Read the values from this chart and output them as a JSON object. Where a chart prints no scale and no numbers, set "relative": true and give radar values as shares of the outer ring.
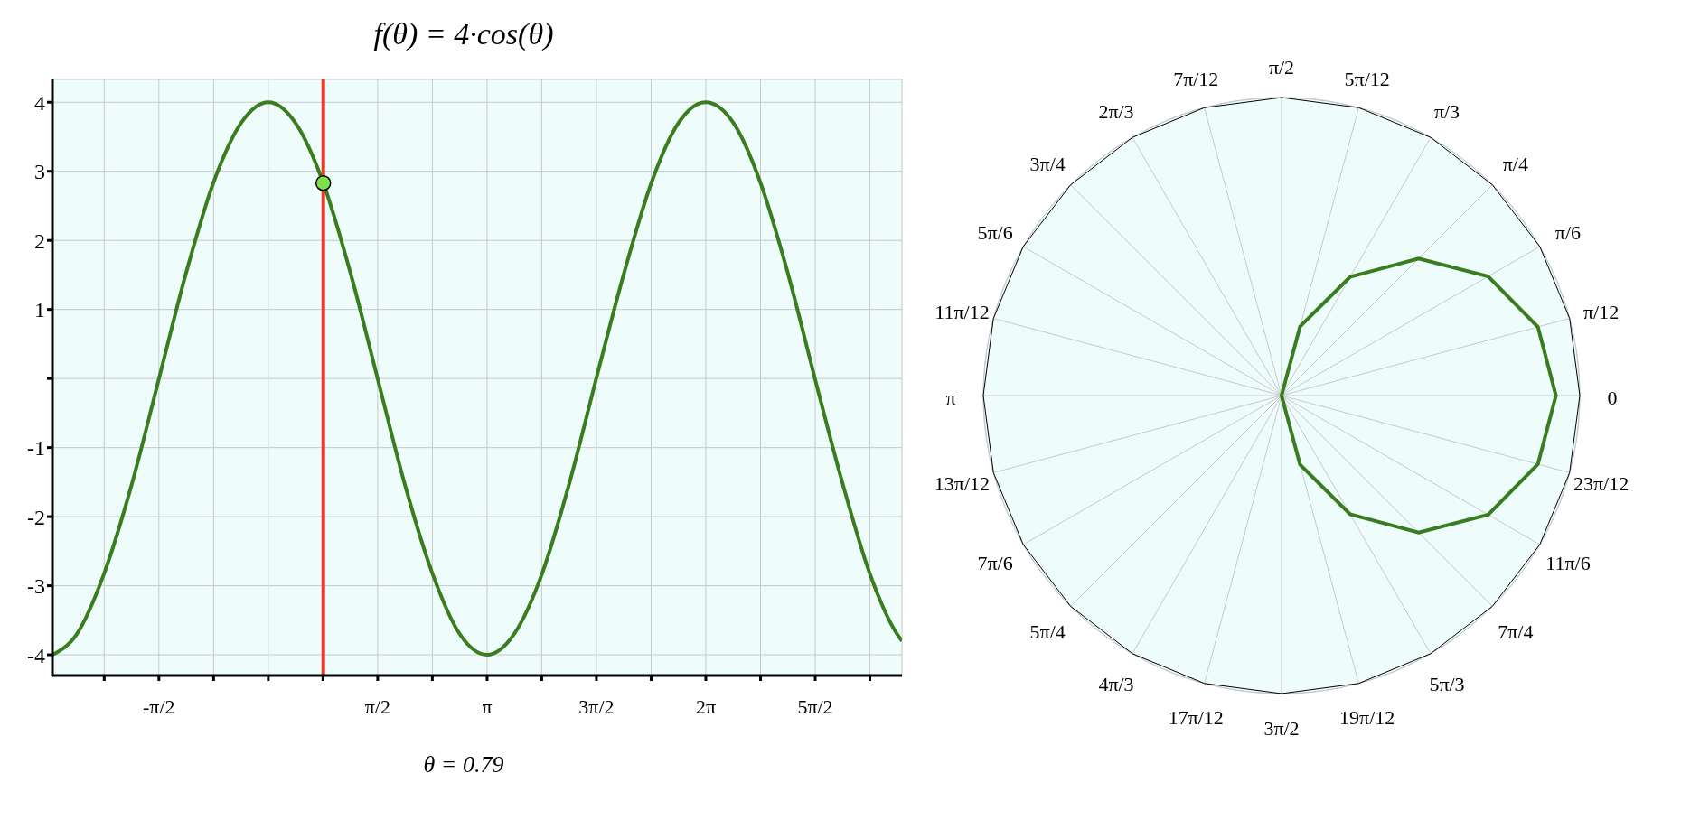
{
  "chart_data": [
    {
      "type": "line",
      "title": "f(θ) = 4·cos(θ)",
      "xlim": [
        -3.1,
        9.1
      ],
      "ylim": [
        -4.3,
        4.33
      ],
      "xticks": [
        {
          "value": -2.356,
          "label": null
        },
        {
          "value": -1.571,
          "label": "-π/2"
        },
        {
          "value": -0.785,
          "label": null
        },
        {
          "value": 0,
          "label": null
        },
        {
          "value": 0.785,
          "label": null
        },
        {
          "value": 1.571,
          "label": "π/2"
        },
        {
          "value": 2.356,
          "label": null
        },
        {
          "value": 3.142,
          "label": "π"
        },
        {
          "value": 3.927,
          "label": null
        },
        {
          "value": 4.712,
          "label": "3π/2"
        },
        {
          "value": 5.498,
          "label": null
        },
        {
          "value": 6.283,
          "label": "2π"
        },
        {
          "value": 7.069,
          "label": null
        },
        {
          "value": 7.854,
          "label": "5π/2"
        },
        {
          "value": 8.639,
          "label": null
        }
      ],
      "yticks": [
        -4,
        -3,
        -2,
        -1,
        {
          "value": 0,
          "label": null
        },
        1,
        2,
        3,
        4
      ],
      "grid": true,
      "series": [
        {
          "type": "line",
          "color": "#3a7d1e",
          "marker": "none",
          "x": [
            -3.1,
            -2.75,
            -2.36,
            -1.96,
            -1.57,
            -1.18,
            -0.79,
            -0.39,
            0,
            0.39,
            0.79,
            1.18,
            1.57,
            1.96,
            2.36,
            2.75,
            3.14,
            3.53,
            3.93,
            4.32,
            4.71,
            5.11,
            5.5,
            5.89,
            6.28,
            6.68,
            7.07,
            7.46,
            7.85,
            8.25,
            8.64,
            9.03,
            9.1
          ],
          "values": [
            -4,
            -3.7,
            -2.83,
            -1.53,
            0,
            1.53,
            2.83,
            3.7,
            4,
            3.7,
            2.83,
            1.53,
            0,
            -1.53,
            -2.83,
            -3.7,
            -4,
            -3.7,
            -2.83,
            -1.53,
            0,
            1.53,
            2.83,
            3.7,
            4,
            3.7,
            2.83,
            1.53,
            0,
            -1.53,
            -2.83,
            -3.7,
            -3.8
          ]
        },
        {
          "type": "scatter",
          "color": "#7fe04a",
          "marker": "circle",
          "x": [
            0.79
          ],
          "values": [
            2.83
          ]
        }
      ],
      "ref_lines": [
        {
          "axis": "x",
          "value": 0.79,
          "color": "#e8392a"
        }
      ],
      "annotations": [
        "θ = 0.79"
      ]
    },
    {
      "type": "radar",
      "relative": true,
      "grid": true,
      "categories": [
        "π/2",
        "5π/12",
        "π/3",
        "π/4",
        "π/6",
        "π/12",
        "0",
        "23π/12",
        "11π/6",
        "7π/4",
        "5π/3",
        "19π/12",
        "3π/2",
        "17π/12",
        "4π/3",
        "5π/4",
        "7π/6",
        "13π/12",
        "π",
        "11π/12",
        "5π/6",
        "3π/4",
        "2π/3",
        "7π/12"
      ],
      "series": [
        {
          "color": "#3a7d1e",
          "values": [
            0,
            0.24,
            0.46,
            0.65,
            0.8,
            0.89,
            0.92,
            0.89,
            0.8,
            0.65,
            0.46,
            0.24,
            0,
            0,
            0,
            0,
            0,
            0,
            0,
            0,
            0,
            0,
            0,
            0
          ]
        }
      ]
    }
  ]
}
